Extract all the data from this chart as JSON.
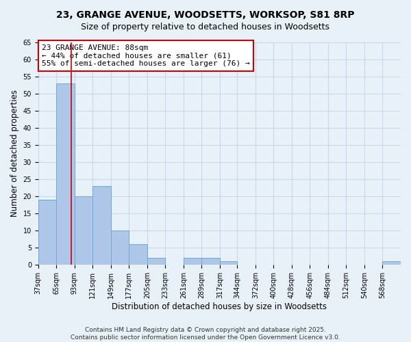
{
  "title": "23, GRANGE AVENUE, WOODSETTS, WORKSOP, S81 8RP",
  "subtitle": "Size of property relative to detached houses in Woodsetts",
  "xlabel": "Distribution of detached houses by size in Woodsetts",
  "ylabel": "Number of detached properties",
  "bar_edges": [
    37,
    65,
    93,
    121,
    149,
    177,
    205,
    233,
    261,
    289,
    317,
    344,
    372,
    400,
    428,
    456,
    484,
    512,
    540,
    568,
    596
  ],
  "bar_heights": [
    19,
    53,
    20,
    23,
    10,
    6,
    2,
    0,
    2,
    2,
    1,
    0,
    0,
    0,
    0,
    0,
    0,
    0,
    0,
    1
  ],
  "bar_color": "#aec6e8",
  "bar_edge_color": "#6aaad4",
  "property_line_x": 88,
  "property_line_color": "#cc0000",
  "annotation_line1": "23 GRANGE AVENUE: 88sqm",
  "annotation_line2": "← 44% of detached houses are smaller (61)",
  "annotation_line3": "55% of semi-detached houses are larger (76) →",
  "annotation_box_color": "#ffffff",
  "annotation_box_edge_color": "#cc0000",
  "ylim": [
    0,
    65
  ],
  "yticks": [
    0,
    5,
    10,
    15,
    20,
    25,
    30,
    35,
    40,
    45,
    50,
    55,
    60,
    65
  ],
  "grid_color": "#c8d8ea",
  "background_color": "#e8f0f8",
  "footer_line1": "Contains HM Land Registry data © Crown copyright and database right 2025.",
  "footer_line2": "Contains public sector information licensed under the Open Government Licence v3.0.",
  "title_fontsize": 10,
  "subtitle_fontsize": 9,
  "axis_label_fontsize": 8.5,
  "tick_label_fontsize": 7,
  "annotation_fontsize": 8,
  "footer_fontsize": 6.5
}
